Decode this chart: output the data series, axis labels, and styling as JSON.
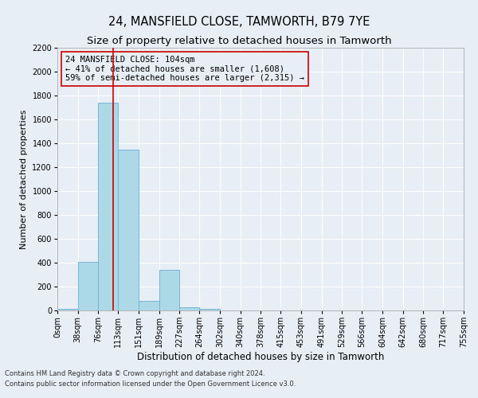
{
  "title": "24, MANSFIELD CLOSE, TAMWORTH, B79 7YE",
  "subtitle": "Size of property relative to detached houses in Tamworth",
  "xlabel": "Distribution of detached houses by size in Tamworth",
  "ylabel": "Number of detached properties",
  "bin_edges": [
    0,
    38,
    76,
    113,
    151,
    189,
    227,
    264,
    302,
    340,
    378,
    415,
    453,
    491,
    529,
    566,
    604,
    642,
    680,
    717,
    755
  ],
  "bin_labels": [
    "0sqm",
    "38sqm",
    "76sqm",
    "113sqm",
    "151sqm",
    "189sqm",
    "227sqm",
    "264sqm",
    "302sqm",
    "340sqm",
    "378sqm",
    "415sqm",
    "453sqm",
    "491sqm",
    "529sqm",
    "566sqm",
    "604sqm",
    "642sqm",
    "680sqm",
    "717sqm",
    "755sqm"
  ],
  "counts": [
    15,
    410,
    1740,
    1350,
    80,
    340,
    25,
    15,
    0,
    0,
    0,
    0,
    0,
    0,
    0,
    0,
    0,
    0,
    0,
    0
  ],
  "bar_color": "#add8e6",
  "bar_edge_color": "#6baed6",
  "property_line_x": 104,
  "property_line_color": "#cc0000",
  "annotation_title": "24 MANSFIELD CLOSE: 104sqm",
  "annotation_line1": "← 41% of detached houses are smaller (1,608)",
  "annotation_line2": "59% of semi-detached houses are larger (2,315) →",
  "annotation_box_edge": "#cc0000",
  "ylim": [
    0,
    2200
  ],
  "yticks": [
    0,
    200,
    400,
    600,
    800,
    1000,
    1200,
    1400,
    1600,
    1800,
    2000,
    2200
  ],
  "footnote1": "Contains HM Land Registry data © Crown copyright and database right 2024.",
  "footnote2": "Contains public sector information licensed under the Open Government Licence v3.0.",
  "background_color": "#e8eef5",
  "grid_color": "#ffffff",
  "title_fontsize": 10.5,
  "subtitle_fontsize": 9.5,
  "xlabel_fontsize": 8.5,
  "ylabel_fontsize": 8,
  "tick_fontsize": 7,
  "annotation_fontsize": 7.5,
  "footnote_fontsize": 6
}
